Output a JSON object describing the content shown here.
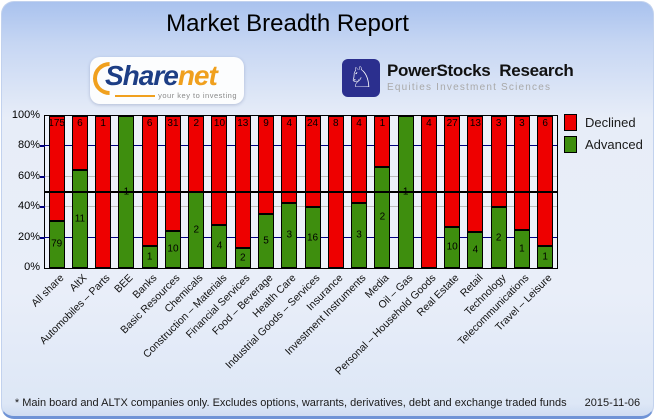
{
  "title": "Market Breadth Report",
  "logos": {
    "sharenet": {
      "part1": "Share",
      "part2": "net",
      "tagline": "your key to investing",
      "accent_color": "#f0a01e",
      "text_color": "#1d3e85"
    },
    "powerstocks": {
      "knight_glyph": "♘",
      "line1": "PowerStocks  Research",
      "line2": "Equities Investment Sciences",
      "icon_color": "#2b2f8e"
    }
  },
  "legend": [
    {
      "label": "Declined",
      "color": "#ee0000"
    },
    {
      "label": "Advanced",
      "color": "#3e8e0e"
    }
  ],
  "footer": {
    "note": "* Main board and ALTX companies only. Excludes options, warrants, derivatives, debt and exchange traded funds",
    "date": "2015-11-06"
  },
  "chart_data": {
    "type": "bar",
    "stacked": true,
    "normalized_to": "100% per category; segment labels show company counts",
    "title": "Market Breadth Report",
    "xlabel": "",
    "ylabel": "",
    "ylim": [
      0,
      100
    ],
    "yticks": [
      0,
      20,
      40,
      60,
      80,
      100
    ],
    "ytick_labels": [
      "0%",
      "20%",
      "40%",
      "60%",
      "80%",
      "100%"
    ],
    "grid": {
      "navy_lines_pct": [
        20,
        80
      ],
      "gray_lines_pct": [
        40,
        60
      ],
      "black_line_pct": 50,
      "navy_color": "#000080",
      "gray_color": "#bdbdbd",
      "black_color": "#000000"
    },
    "legend_position": "right-top",
    "categories": [
      "All share",
      "AltX",
      "Automobiles – Parts",
      "BEE",
      "Banks",
      "Basic Resources",
      "Chemicals",
      "Construction – Materials",
      "Financial Services",
      "Food – Beverage",
      "Health Care",
      "Industrial Goods – Services",
      "Insurance",
      "Investment Instruments",
      "Media",
      "Oil – Gas",
      "Personal – Household Goods",
      "Real Estate",
      "Retail",
      "Technology",
      "Telecommunications",
      "Travel – Leisure"
    ],
    "series": [
      {
        "name": "Declined",
        "color": "#ee0000",
        "values": [
          175,
          6,
          1,
          0,
          6,
          31,
          2,
          10,
          13,
          9,
          4,
          24,
          8,
          4,
          1,
          0,
          4,
          27,
          13,
          3,
          3,
          6
        ]
      },
      {
        "name": "Advanced",
        "color": "#3e8e0e",
        "values": [
          79,
          11,
          0,
          1,
          1,
          10,
          2,
          4,
          2,
          5,
          3,
          16,
          0,
          3,
          2,
          1,
          0,
          10,
          4,
          2,
          1,
          1
        ]
      }
    ]
  }
}
